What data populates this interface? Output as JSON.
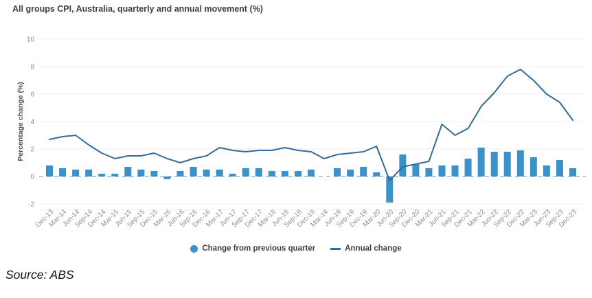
{
  "title": "All groups CPI, Australia, quarterly and annual movement (%)",
  "source": "Source: ABS",
  "colors": {
    "bar": "#3b92ca",
    "line": "#346a94",
    "grid": "#ececec",
    "zero_line": "#c6c6c6",
    "tick_text": "#8c8c8c",
    "axis_label": "#4f4f4f"
  },
  "legend": [
    {
      "label": "Change from previous quarter",
      "marker": "circle"
    },
    {
      "label": "Annual change",
      "marker": "line"
    }
  ],
  "chart_data": {
    "type": "bar",
    "title": "All groups CPI, Australia, quarterly and annual movement (%)",
    "xlabel": "",
    "ylabel": "Percentage change (%)",
    "yticks": [
      10,
      8,
      6,
      4,
      2,
      0,
      -2
    ],
    "ylim": [
      -2.4,
      10.4
    ],
    "grid": true,
    "legend_position": "bottom",
    "categories": [
      "Dec-13",
      "Mar-14",
      "Jun-14",
      "Sep-14",
      "Dec-14",
      "Mar-15",
      "Jun-15",
      "Sep-15",
      "Dec-15",
      "Mar-16",
      "Jun-16",
      "Sep-16",
      "Dec-16",
      "Mar-17",
      "Jun-17",
      "Sep-17",
      "Dec-17",
      "Mar-18",
      "Jun-18",
      "Sep-18",
      "Dec-18",
      "Mar-19",
      "Jun-19",
      "Sep-19",
      "Dec-19",
      "Mar-20",
      "Jun-20",
      "Sep-20",
      "Dec-20",
      "Mar-21",
      "Jun-21",
      "Sep-21",
      "Dec-21",
      "Mar-22",
      "Jun-22",
      "Sep-22",
      "Dec-22",
      "Mar-23",
      "Jun-23",
      "Sep-23",
      "Dec-23"
    ],
    "series": [
      {
        "name": "Change from previous quarter",
        "type": "bar",
        "values": [
          0.8,
          0.6,
          0.5,
          0.5,
          0.2,
          0.2,
          0.7,
          0.5,
          0.4,
          -0.2,
          0.4,
          0.7,
          0.5,
          0.5,
          0.2,
          0.6,
          0.6,
          0.4,
          0.4,
          0.4,
          0.5,
          0.0,
          0.6,
          0.5,
          0.7,
          0.3,
          -1.9,
          1.6,
          0.9,
          0.6,
          0.8,
          0.8,
          1.3,
          2.1,
          1.8,
          1.8,
          1.9,
          1.4,
          0.8,
          1.2,
          0.6
        ]
      },
      {
        "name": "Annual change",
        "type": "line",
        "values": [
          2.7,
          2.9,
          3.0,
          2.3,
          1.7,
          1.3,
          1.5,
          1.5,
          1.7,
          1.3,
          1.0,
          1.3,
          1.5,
          2.1,
          1.9,
          1.8,
          1.9,
          1.9,
          2.1,
          1.9,
          1.8,
          1.3,
          1.6,
          1.7,
          1.8,
          2.2,
          -0.3,
          0.7,
          0.9,
          1.1,
          3.8,
          3.0,
          3.5,
          5.1,
          6.1,
          7.3,
          7.8,
          7.0,
          6.0,
          5.4,
          4.1
        ]
      }
    ]
  }
}
